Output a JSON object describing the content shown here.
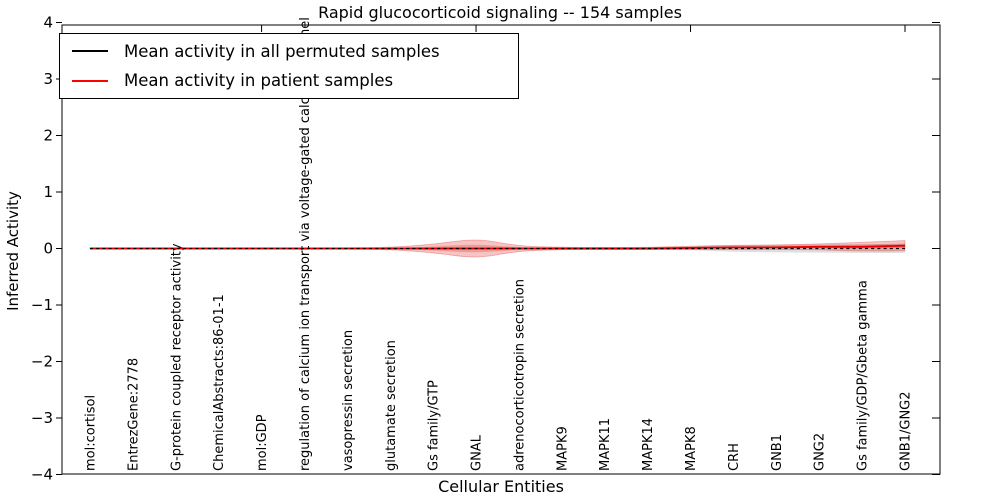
{
  "title": "Rapid glucocorticoid signaling -- 154 samples",
  "axes": {
    "xlabel": "Cellular Entities",
    "ylabel": "Inferred Activity",
    "yticks": [
      4,
      3,
      2,
      1,
      0,
      -1,
      -2,
      -3,
      -4
    ],
    "ylim": [
      -4,
      4
    ],
    "top_tick_indices": [
      4,
      9,
      14,
      19
    ]
  },
  "legend": {
    "items": [
      {
        "label": "Mean activity in all permuted samples",
        "color": "#000000"
      },
      {
        "label": "Mean activity in patient samples",
        "color": "#ff0000"
      }
    ],
    "position": "upper left"
  },
  "colors": {
    "permuted_line": "#000000",
    "patient_line": "#e60000",
    "patient_fill": "rgba(222,45,38,0.28)",
    "permuted_fill": "rgba(110,110,110,0.22)",
    "frame": "#000000"
  },
  "chart_data": {
    "type": "line",
    "title": "Rapid glucocorticoid signaling -- 154 samples",
    "xlabel": "Cellular Entities",
    "ylabel": "Inferred Activity",
    "ylim": [
      -4,
      4
    ],
    "grid": false,
    "legend_position": "upper left",
    "categories": [
      "mol:cortisol",
      "EntrezGene:2778",
      "G-protein coupled receptor activity",
      "ChemicalAbstracts:86-01-1",
      "mol:GDP",
      "regulation of calcium ion transport via voltage-gated calcium channel",
      "vasopressin secretion",
      "glutamate secretion",
      "Gs family/GTP",
      "GNAL",
      "adrenocorticotropin secretion",
      "MAPK9",
      "MAPK11",
      "MAPK14",
      "MAPK8",
      "CRH",
      "GNB1",
      "GNG2",
      "Gs family/GDP/Gbeta gamma",
      "GNB1/GNG2"
    ],
    "series": [
      {
        "name": "Mean activity in all permuted samples",
        "style": "dashed",
        "color": "#000000",
        "values": [
          0,
          0,
          0,
          0,
          0,
          0,
          0,
          0,
          0,
          0,
          0,
          0,
          0,
          0,
          0,
          0,
          0,
          0,
          0,
          0
        ]
      },
      {
        "name": "Mean activity in patient samples",
        "style": "solid",
        "color": "#e60000",
        "values": [
          0,
          0,
          0,
          0,
          0,
          0,
          0,
          0,
          0,
          0,
          0,
          0,
          0,
          0,
          0.01,
          0.02,
          0.02,
          0.03,
          0.03,
          0.05
        ]
      }
    ],
    "bands": {
      "patient_halfwidth": [
        0.012,
        0.012,
        0.012,
        0.012,
        0.012,
        0.012,
        0.012,
        0.02,
        0.07,
        0.18,
        0.04,
        0.02,
        0.02,
        0.02,
        0.03,
        0.04,
        0.04,
        0.05,
        0.08,
        0.09
      ],
      "permuted_halfwidth": [
        0.01,
        0.01,
        0.01,
        0.01,
        0.01,
        0.01,
        0.01,
        0.01,
        0.02,
        0.02,
        0.02,
        0.02,
        0.02,
        0.02,
        0.03,
        0.06,
        0.07,
        0.07,
        0.08,
        0.08
      ]
    }
  }
}
